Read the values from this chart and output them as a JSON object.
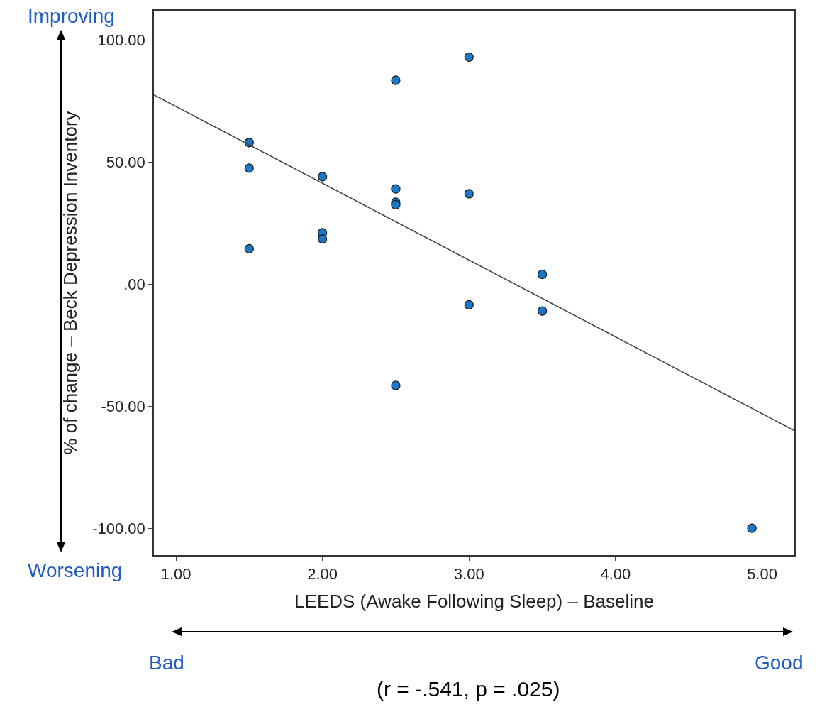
{
  "chart_data": {
    "type": "scatter",
    "xlabel": "LEEDS (Awake Following Sleep) – Baseline",
    "ylabel": "% of change – Beck Depression Inventory",
    "series": [
      {
        "color": "#1a78c8",
        "x": [
          1.5,
          1.5,
          1.5,
          2.0,
          2.0,
          2.0,
          2.5,
          2.5,
          2.5,
          2.5,
          2.5,
          3.0,
          3.0,
          3.0,
          3.5,
          3.5,
          4.93
        ],
        "values": [
          58,
          47.5,
          14.5,
          44,
          21,
          18.5,
          83.5,
          39,
          33.5,
          32.5,
          -41.5,
          93,
          37,
          -8.5,
          4,
          -11,
          -100
        ]
      },
      {
        "type": "line",
        "marker": "none",
        "color": "#404040",
        "x": [
          0.85,
          5.22
        ],
        "values": [
          77.5,
          -60
        ]
      }
    ],
    "annotations": [
      "Improving",
      "Worsening",
      "Bad",
      "Good",
      "(r = -.541, p = .025)"
    ],
    "xlim": [
      0.85,
      5.22
    ],
    "xticks": [
      {
        "value": 1,
        "label": "1.00"
      },
      {
        "value": 2,
        "label": "2.00"
      },
      {
        "value": 3,
        "label": "3.00"
      },
      {
        "value": 4,
        "label": "4.00"
      },
      {
        "value": 5,
        "label": "5.00"
      }
    ],
    "ylim": [
      -111,
      112
    ],
    "yticks": [
      {
        "value": -100,
        "label": "-100.00"
      },
      {
        "value": -50,
        "label": "-50.00"
      },
      {
        "value": 0,
        "label": ".00"
      },
      {
        "value": 50,
        "label": "50.00"
      },
      {
        "value": 100,
        "label": "100.00"
      }
    ],
    "marker": "circle",
    "line_style": "solid",
    "grid": false,
    "legend": false
  }
}
